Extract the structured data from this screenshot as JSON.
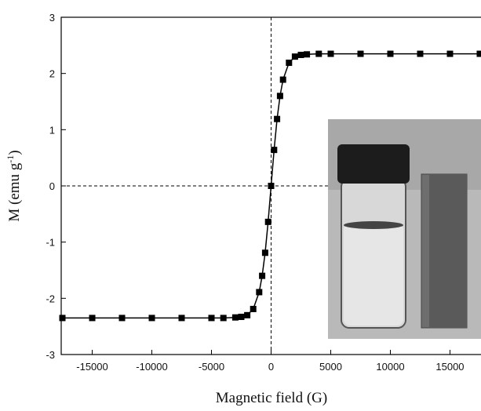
{
  "chart_data": {
    "type": "scatter",
    "xlabel": "Magnetic field (G)",
    "ylabel": [
      "M (emu g",
      "-1",
      ")"
    ],
    "x": [
      -17500,
      -15000,
      -12500,
      -10000,
      -7500,
      -5000,
      -4000,
      -3000,
      -2500,
      -2000,
      -1500,
      -1000,
      -750,
      -500,
      -250,
      0,
      250,
      500,
      750,
      1000,
      1500,
      2000,
      2500,
      3000,
      4000,
      5000,
      7500,
      10000,
      12500,
      15000,
      17500
    ],
    "series": [
      {
        "color": "#000000",
        "values": [
          -2.35,
          -2.35,
          -2.35,
          -2.35,
          -2.35,
          -2.35,
          -2.35,
          -2.34,
          -2.33,
          -2.3,
          -2.19,
          -1.89,
          -1.6,
          -1.19,
          -0.64,
          0,
          0.64,
          1.19,
          1.6,
          1.89,
          2.19,
          2.3,
          2.33,
          2.34,
          2.35,
          2.35,
          2.35,
          2.35,
          2.35,
          2.35,
          2.35
        ]
      }
    ],
    "xlim": [
      -17600,
      17600
    ],
    "ylim": [
      -3,
      3
    ],
    "xticks": [
      -15000,
      -10000,
      -5000,
      0,
      5000,
      10000,
      15000
    ],
    "yticks": [
      -3,
      -2,
      -1,
      0,
      1,
      2,
      3
    ],
    "crosshair": {
      "x": 0,
      "y": 0
    }
  }
}
